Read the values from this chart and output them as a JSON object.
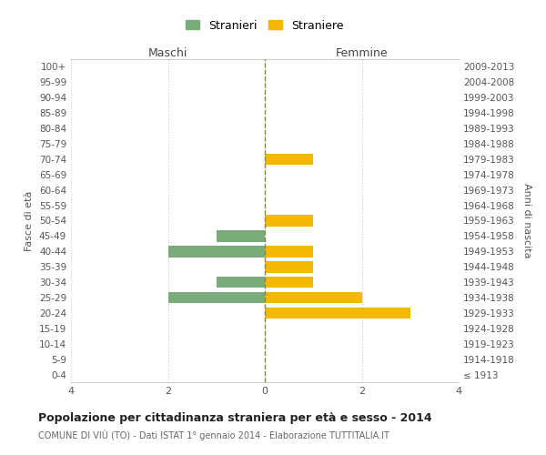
{
  "age_groups": [
    "100+",
    "95-99",
    "90-94",
    "85-89",
    "80-84",
    "75-79",
    "70-74",
    "65-69",
    "60-64",
    "55-59",
    "50-54",
    "45-49",
    "40-44",
    "35-39",
    "30-34",
    "25-29",
    "20-24",
    "15-19",
    "10-14",
    "5-9",
    "0-4"
  ],
  "birth_years": [
    "≤ 1913",
    "1914-1918",
    "1919-1923",
    "1924-1928",
    "1929-1933",
    "1934-1938",
    "1939-1943",
    "1944-1948",
    "1949-1953",
    "1954-1958",
    "1959-1963",
    "1964-1968",
    "1969-1973",
    "1974-1978",
    "1979-1983",
    "1984-1988",
    "1989-1993",
    "1994-1998",
    "1999-2003",
    "2004-2008",
    "2009-2013"
  ],
  "maschi": [
    0,
    0,
    0,
    0,
    0,
    0,
    0,
    0,
    0,
    0,
    0,
    1,
    2,
    0,
    1,
    2,
    0,
    0,
    0,
    0,
    0
  ],
  "femmine": [
    0,
    0,
    0,
    0,
    0,
    0,
    1,
    0,
    0,
    0,
    1,
    0,
    1,
    1,
    1,
    2,
    3,
    0,
    0,
    0,
    0
  ],
  "maschi_color": "#7aab7a",
  "femmine_color": "#f5b800",
  "xlim": 4,
  "title": "Popolazione per cittadinanza straniera per età e sesso - 2014",
  "subtitle": "COMUNE DI VIÙ (TO) - Dati ISTAT 1° gennaio 2014 - Elaborazione TUTTITALIA.IT",
  "xlabel_left": "Maschi",
  "xlabel_right": "Femmine",
  "ylabel_left": "Fasce di età",
  "ylabel_right": "Anni di nascita",
  "legend_maschi": "Stranieri",
  "legend_femmine": "Straniere",
  "background_color": "#ffffff",
  "grid_color": "#cccccc",
  "center_line_color": "#888844",
  "bar_height": 0.75
}
